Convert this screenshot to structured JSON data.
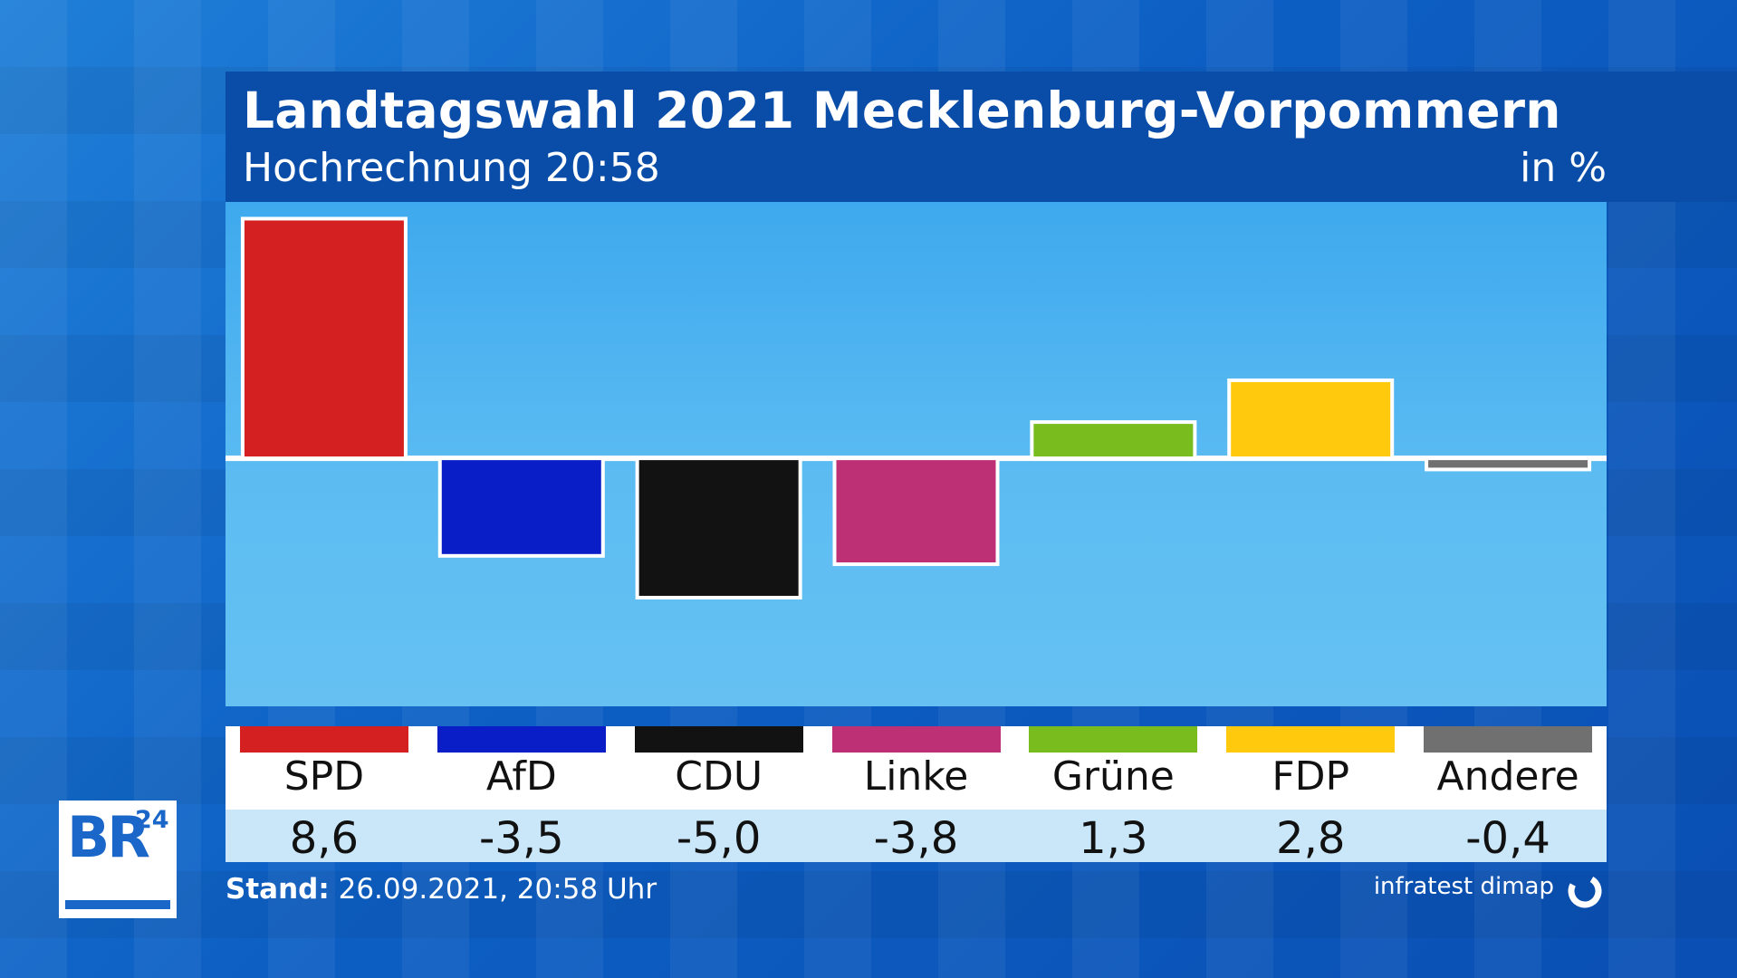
{
  "header": {
    "title": "Landtagswahl 2021 Mecklenburg-Vorpommern",
    "subtitle": "Hochrechnung 20:58",
    "unit": "in %"
  },
  "chart_data": {
    "type": "bar",
    "title": "Landtagswahl 2021 Mecklenburg-Vorpommern",
    "subtitle": "Hochrechnung 20:58",
    "xlabel": "",
    "ylabel": "in %",
    "categories": [
      "SPD",
      "AfD",
      "CDU",
      "Linke",
      "Grüne",
      "FDP",
      "Andere"
    ],
    "values": [
      8.6,
      -3.5,
      -5.0,
      -3.8,
      1.3,
      2.8,
      -0.4
    ],
    "value_labels": [
      "8,6",
      "-3,5",
      "-5,0",
      "-3,8",
      "1,3",
      "2,8",
      "-0,4"
    ],
    "colors": [
      "#d42020",
      "#0a1ec8",
      "#121212",
      "#bd3075",
      "#78bc1e",
      "#ffc90d",
      "#707070"
    ],
    "ylim": [
      -8.9,
      9.2
    ],
    "grid": false,
    "legend": "bottom"
  },
  "footer": {
    "stand_label": "Stand:",
    "stand_value": "26.09.2021, 20:58 Uhr",
    "source": "infratest dimap"
  },
  "logo": {
    "main": "BR",
    "sup": "24"
  }
}
